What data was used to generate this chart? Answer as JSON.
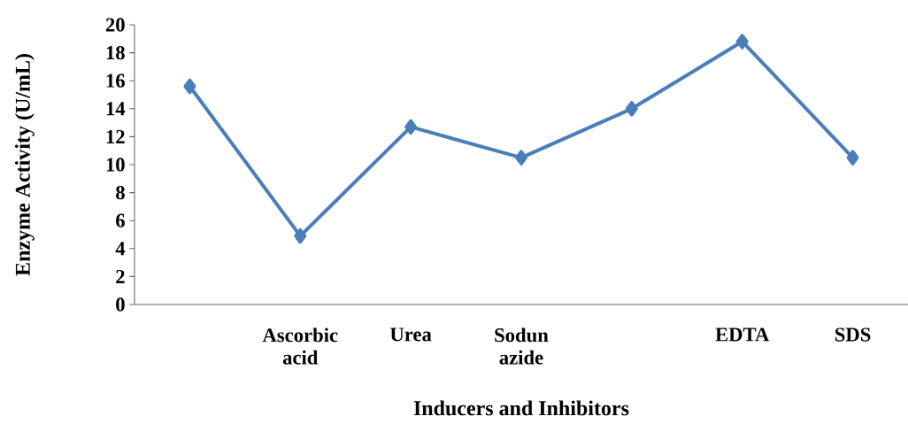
{
  "chart_data": {
    "type": "line",
    "xlabel": "Inducers and Inhibitors",
    "ylabel": "Enzyme Activity (U/mL)",
    "categories": [
      null,
      "Ascorbic acid",
      "Urea",
      "Sodun azide",
      null,
      "EDTA",
      "SDS"
    ],
    "series": [
      {
        "color": "#4a7ebb",
        "values": [
          15.6,
          4.9,
          12.7,
          10.5,
          14.0,
          18.8,
          10.5
        ]
      }
    ],
    "ylim": [
      0,
      20
    ],
    "yticks": [
      0,
      2,
      4,
      6,
      8,
      10,
      12,
      14,
      16,
      18,
      20
    ],
    "marker": "diamond",
    "line_style": "solid",
    "grid": false
  }
}
